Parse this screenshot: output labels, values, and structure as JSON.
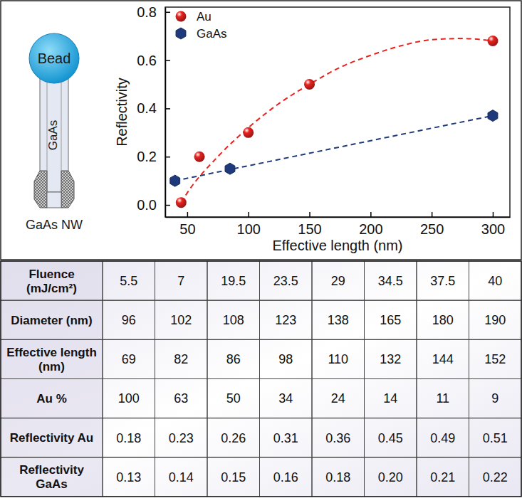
{
  "diagram": {
    "labels": [
      "Bead",
      "GaAs",
      "GaAs NW"
    ]
  },
  "chart_data": {
    "type": "scatter",
    "x_label": "Effective length (nm)",
    "y_label": "Reflectivity",
    "xlim": [
      32,
      314
    ],
    "xticks": [
      50,
      100,
      150,
      200,
      250,
      300
    ],
    "ylim": [
      -0.05,
      0.82
    ],
    "yticks": [
      {
        "value": 0,
        "label": "0.0"
      },
      0.2,
      0.4,
      0.6,
      0.8
    ],
    "legend": "upper left",
    "grid": false,
    "series": [
      {
        "name": "Au",
        "type": "scatter",
        "color": "#e8231f",
        "marker": "circle",
        "x": [
          45,
          60,
          100,
          150,
          300
        ],
        "values": [
          0.01,
          0.2,
          0.3,
          0.5,
          0.68
        ]
      },
      {
        "name": "GaAs",
        "type": "scatter",
        "color": "#1f3a7a",
        "marker": "hexagon",
        "x": [
          40,
          85,
          300
        ],
        "values": [
          0.1,
          0.15,
          0.37
        ]
      },
      {
        "type": "line",
        "color": "#e8231f",
        "line_style": "dashed",
        "x": [
          45,
          50,
          75,
          100,
          125,
          150,
          175,
          200,
          225,
          250,
          275,
          300
        ],
        "values": [
          0.01,
          0.05,
          0.2,
          0.32,
          0.42,
          0.5,
          0.57,
          0.62,
          0.66,
          0.685,
          0.69,
          0.68
        ]
      },
      {
        "type": "line",
        "color": "#1f3a7a",
        "line_style": "dashed",
        "x": [
          40,
          300
        ],
        "values": [
          0.1,
          0.37
        ]
      }
    ]
  },
  "table": {
    "rows": [
      [
        "Fluence (mJ/cm²)",
        "5.5",
        "7",
        "19.5",
        "23.5",
        "29",
        "34.5",
        "37.5",
        "40"
      ],
      [
        "Diameter (nm)",
        "96",
        "102",
        "108",
        "123",
        "138",
        "165",
        "180",
        "190"
      ],
      [
        "Effective length (nm)",
        "69",
        "82",
        "86",
        "98",
        "110",
        "132",
        "144",
        "152"
      ],
      [
        "Au %",
        "100",
        "63",
        "50",
        "34",
        "24",
        "14",
        "11",
        "9"
      ],
      [
        "Reflectivity Au",
        "0.18",
        "0.23",
        "0.26",
        "0.31",
        "0.36",
        "0.45",
        "0.49",
        "0.51"
      ],
      [
        "Reflectivity GaAs",
        "0.13",
        "0.14",
        "0.15",
        "0.16",
        "0.18",
        "0.20",
        "0.21",
        "0.22"
      ]
    ]
  }
}
